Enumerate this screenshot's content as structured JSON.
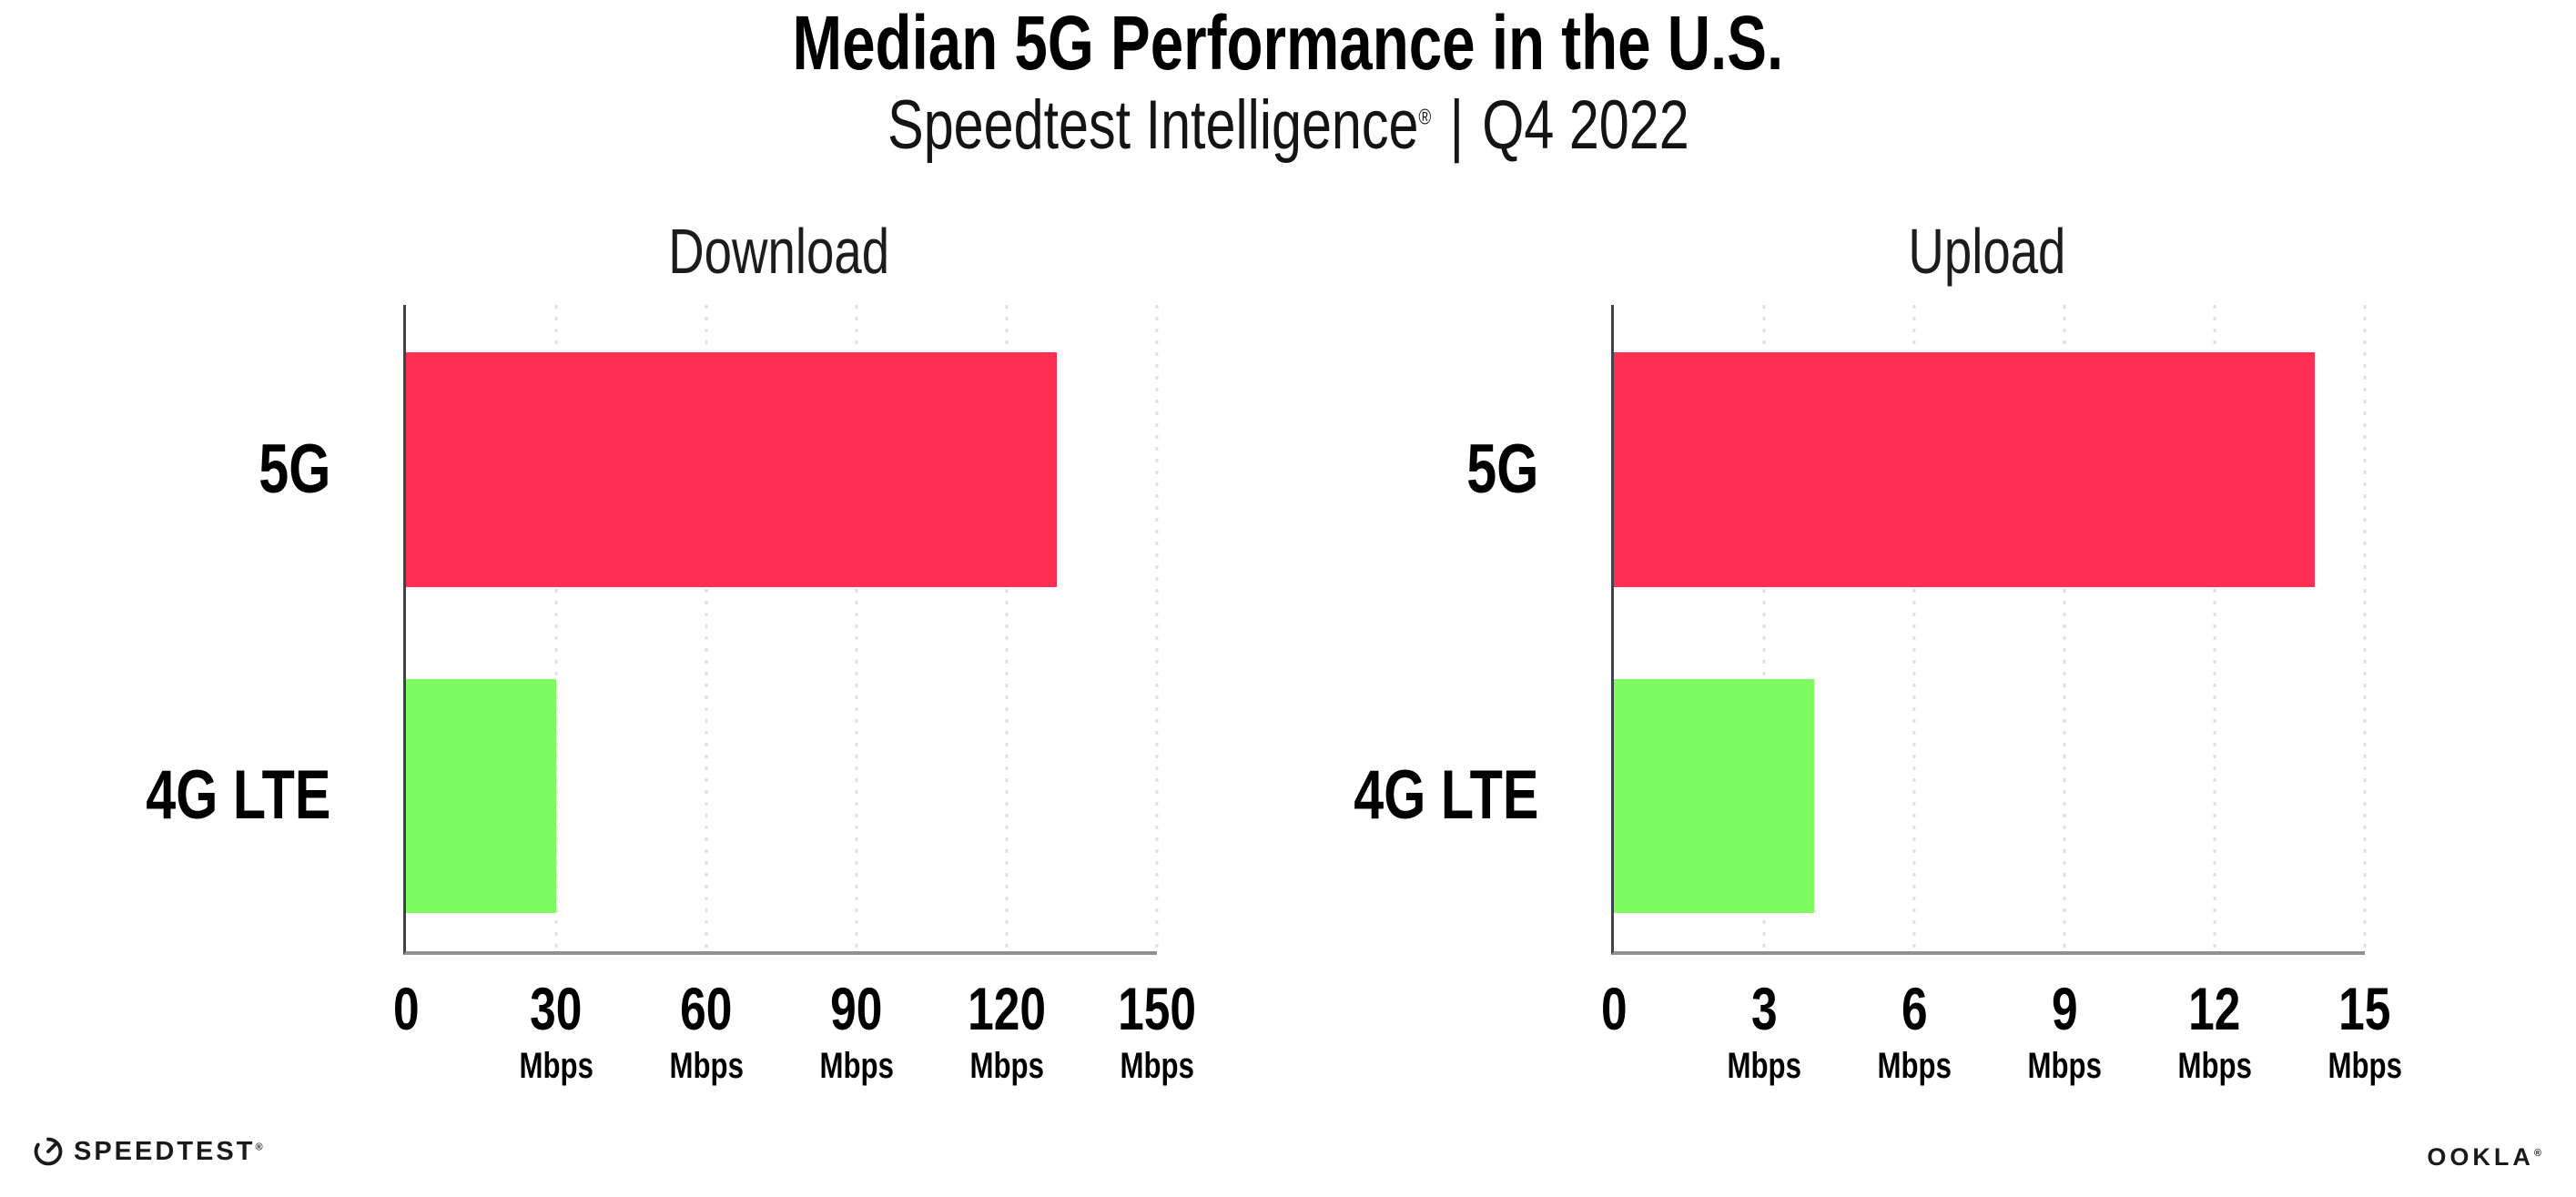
{
  "title": "Median 5G Performance in the U.S.",
  "subtitle": {
    "brand": "Speedtest Intelligence",
    "registered": "®",
    "separator": "|",
    "period": "Q4 2022"
  },
  "colors": {
    "bar_5g": "#FF2E55",
    "bar_4g_lte": "#7EFC62",
    "gridline": "#DFDFE9",
    "x_axis": "#8F8F96",
    "y_axis": "#41414B",
    "text": "#000000"
  },
  "chart_data": [
    {
      "type": "bar",
      "orientation": "horizontal",
      "title": "Download",
      "categories": [
        "5G",
        "4G LTE"
      ],
      "values": [
        130,
        30
      ],
      "unit": "Mbps",
      "xlim": [
        0,
        150
      ],
      "ticks": [
        0,
        30,
        60,
        90,
        120,
        150
      ],
      "tick_labels": [
        "0",
        "30",
        "60",
        "90",
        "120",
        "150"
      ],
      "tick_units": [
        "",
        "Mbps",
        "Mbps",
        "Mbps",
        "Mbps",
        "Mbps"
      ],
      "bar_colors": [
        "#FF2E55",
        "#7EFC62"
      ],
      "grid": "dotted-vertical",
      "legend": "none"
    },
    {
      "type": "bar",
      "orientation": "horizontal",
      "title": "Upload",
      "categories": [
        "5G",
        "4G LTE"
      ],
      "values": [
        14,
        4
      ],
      "unit": "Mbps",
      "xlim": [
        0,
        15
      ],
      "ticks": [
        0,
        3,
        6,
        9,
        12,
        15
      ],
      "tick_labels": [
        "0",
        "3",
        "6",
        "9",
        "12",
        "15"
      ],
      "tick_units": [
        "",
        "Mbps",
        "Mbps",
        "Mbps",
        "Mbps",
        "Mbps"
      ],
      "bar_colors": [
        "#FF2E55",
        "#7EFC62"
      ],
      "grid": "dotted-vertical",
      "legend": "none"
    }
  ],
  "footer": {
    "speedtest_label": "SPEEDTEST",
    "speedtest_registered": "®",
    "ookla_label": "OOKLA",
    "ookla_registered": "®"
  }
}
